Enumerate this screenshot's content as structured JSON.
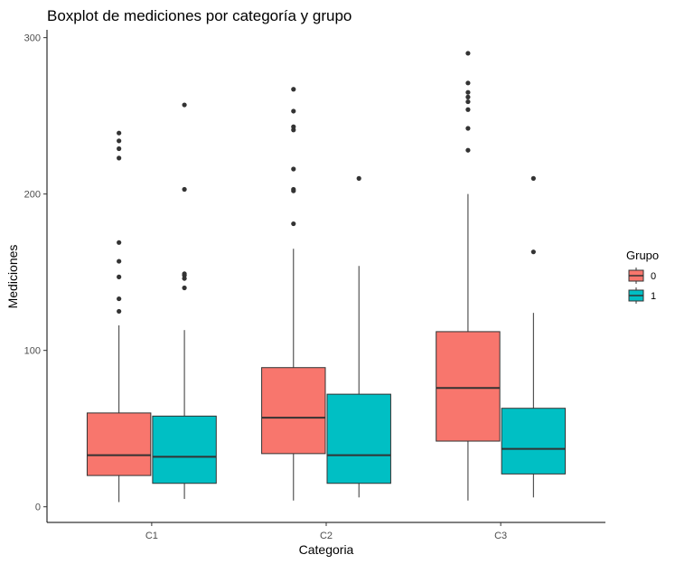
{
  "chart_data": {
    "type": "boxplot",
    "title": "Boxplot de mediciones por categoría y grupo",
    "xlabel": "Categoria",
    "ylabel": "Mediciones",
    "categories": [
      "C1",
      "C2",
      "C3"
    ],
    "ylim": [
      -10,
      305
    ],
    "yticks": [
      0,
      100,
      200,
      300
    ],
    "grid": false,
    "legend": {
      "title": "Grupo",
      "position": "right",
      "entries": [
        {
          "label": "0",
          "color": "#F8766D"
        },
        {
          "label": "1",
          "color": "#00BFC4"
        }
      ]
    },
    "series": [
      {
        "name": "0",
        "color": "#F8766D",
        "boxes": [
          {
            "category": "C1",
            "whisker_low": 3,
            "q1": 20,
            "median": 33,
            "q3": 60,
            "whisker_high": 116,
            "outliers": [
              125,
              133,
              147,
              157,
              169,
              223,
              229,
              234,
              239
            ]
          },
          {
            "category": "C2",
            "whisker_low": 4,
            "q1": 34,
            "median": 57,
            "q3": 89,
            "whisker_high": 165,
            "outliers": [
              181,
              202,
              203,
              216,
              241,
              243,
              253,
              267
            ]
          },
          {
            "category": "C3",
            "whisker_low": 4,
            "q1": 42,
            "median": 76,
            "q3": 112,
            "whisker_high": 200,
            "outliers": [
              228,
              242,
              254,
              259,
              262,
              265,
              271,
              290
            ]
          }
        ]
      },
      {
        "name": "1",
        "color": "#00BFC4",
        "boxes": [
          {
            "category": "C1",
            "whisker_low": 5,
            "q1": 15,
            "median": 32,
            "q3": 58,
            "whisker_high": 113,
            "outliers": [
              140,
              146,
              148,
              149,
              203,
              257
            ]
          },
          {
            "category": "C2",
            "whisker_low": 6,
            "q1": 15,
            "median": 33,
            "q3": 72,
            "whisker_high": 154,
            "outliers": [
              210
            ]
          },
          {
            "category": "C3",
            "whisker_low": 6,
            "q1": 21,
            "median": 37,
            "q3": 63,
            "whisker_high": 124,
            "outliers": [
              163,
              210
            ]
          }
        ]
      }
    ]
  }
}
